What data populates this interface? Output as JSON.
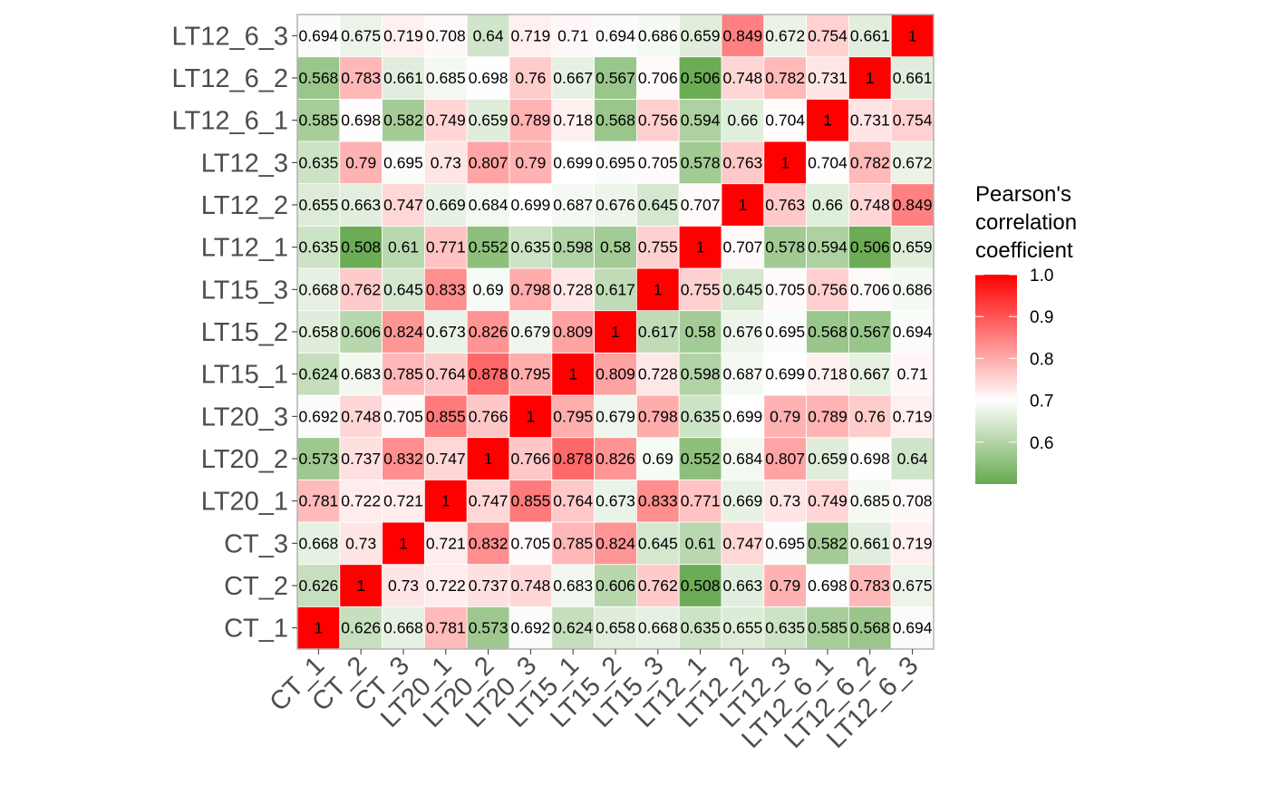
{
  "chart_data": {
    "type": "heatmap",
    "samples": [
      "CT_1",
      "CT_2",
      "CT_3",
      "LT20_1",
      "LT20_2",
      "LT20_3",
      "LT15_1",
      "LT15_2",
      "LT15_3",
      "LT12_1",
      "LT12_2",
      "LT12_3",
      "LT12_6_1",
      "LT12_6_2",
      "LT12_6_3"
    ],
    "cell_labels": [
      [
        "1",
        "0.626",
        "0.668",
        "0.781",
        "0.573",
        "0.692",
        "0.624",
        "0.658",
        "0.668",
        "0.635",
        "0.655",
        "0.635",
        "0.585",
        "0.568",
        "0.694"
      ],
      [
        "0.626",
        "1",
        "0.73",
        "0.722",
        "0.737",
        "0.748",
        "0.683",
        "0.606",
        "0.762",
        "0.508",
        "0.663",
        "0.79",
        "0.698",
        "0.783",
        "0.675"
      ],
      [
        "0.668",
        "0.73",
        "1",
        "0.721",
        "0.832",
        "0.705",
        "0.785",
        "0.824",
        "0.645",
        "0.61",
        "0.747",
        "0.695",
        "0.582",
        "0.661",
        "0.719"
      ],
      [
        "0.781",
        "0.722",
        "0.721",
        "1",
        "0.747",
        "0.855",
        "0.764",
        "0.673",
        "0.833",
        "0.771",
        "0.669",
        "0.73",
        "0.749",
        "0.685",
        "0.708"
      ],
      [
        "0.573",
        "0.737",
        "0.832",
        "0.747",
        "1",
        "0.766",
        "0.878",
        "0.826",
        "0.69",
        "0.552",
        "0.684",
        "0.807",
        "0.659",
        "0.698",
        "0.64"
      ],
      [
        "0.692",
        "0.748",
        "0.705",
        "0.855",
        "0.766",
        "1",
        "0.795",
        "0.679",
        "0.798",
        "0.635",
        "0.699",
        "0.79",
        "0.789",
        "0.76",
        "0.719"
      ],
      [
        "0.624",
        "0.683",
        "0.785",
        "0.764",
        "0.878",
        "0.795",
        "1",
        "0.809",
        "0.728",
        "0.598",
        "0.687",
        "0.699",
        "0.718",
        "0.667",
        "0.71"
      ],
      [
        "0.658",
        "0.606",
        "0.824",
        "0.673",
        "0.826",
        "0.679",
        "0.809",
        "1",
        "0.617",
        "0.58",
        "0.676",
        "0.695",
        "0.568",
        "0.567",
        "0.694"
      ],
      [
        "0.668",
        "0.762",
        "0.645",
        "0.833",
        "0.69",
        "0.798",
        "0.728",
        "0.617",
        "1",
        "0.755",
        "0.645",
        "0.705",
        "0.756",
        "0.706",
        "0.686"
      ],
      [
        "0.635",
        "0.508",
        "0.61",
        "0.771",
        "0.552",
        "0.635",
        "0.598",
        "0.58",
        "0.755",
        "1",
        "0.707",
        "0.578",
        "0.594",
        "0.506",
        "0.659"
      ],
      [
        "0.655",
        "0.663",
        "0.747",
        "0.669",
        "0.684",
        "0.699",
        "0.687",
        "0.676",
        "0.645",
        "0.707",
        "1",
        "0.763",
        "0.66",
        "0.748",
        "0.849"
      ],
      [
        "0.635",
        "0.79",
        "0.695",
        "0.73",
        "0.807",
        "0.79",
        "0.699",
        "0.695",
        "0.705",
        "0.578",
        "0.763",
        "1",
        "0.704",
        "0.782",
        "0.672"
      ],
      [
        "0.585",
        "0.698",
        "0.582",
        "0.749",
        "0.659",
        "0.789",
        "0.718",
        "0.568",
        "0.756",
        "0.594",
        "0.66",
        "0.704",
        "1",
        "0.731",
        "0.754"
      ],
      [
        "0.568",
        "0.783",
        "0.661",
        "0.685",
        "0.698",
        "0.76",
        "0.667",
        "0.567",
        "0.706",
        "0.506",
        "0.748",
        "0.782",
        "0.731",
        "1",
        "0.661"
      ],
      [
        "0.694",
        "0.675",
        "0.719",
        "0.708",
        "0.64",
        "0.719",
        "0.71",
        "0.694",
        "0.686",
        "0.659",
        "0.849",
        "0.672",
        "0.754",
        "0.661",
        "1"
      ]
    ],
    "legend": {
      "title": [
        "Pearson's",
        "correlation",
        "coefficient"
      ],
      "ticks": [
        "1.0",
        "0.9",
        "0.8",
        "0.7",
        "0.6"
      ],
      "range": [
        0.5,
        1.0
      ],
      "midpoint": 0.7
    },
    "colors": {
      "low": "#66a94f",
      "mid": "#ffffff",
      "high": "#ff0000",
      "panel_border": "#b3b3b3",
      "tick_text": "#4d4d4d"
    }
  }
}
